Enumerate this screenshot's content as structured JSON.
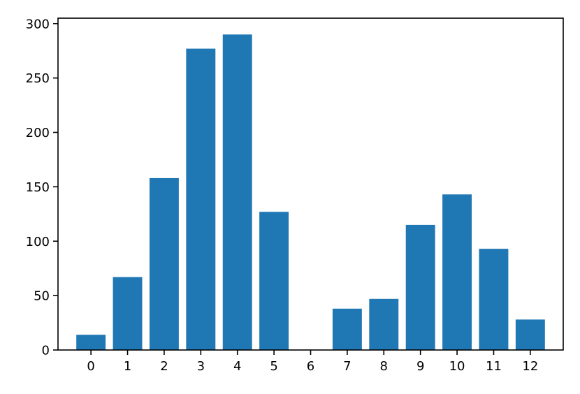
{
  "chart_data": {
    "type": "bar",
    "categories": [
      "0",
      "1",
      "2",
      "3",
      "4",
      "5",
      "6",
      "7",
      "8",
      "9",
      "10",
      "11",
      "12"
    ],
    "values": [
      14,
      67,
      158,
      277,
      290,
      127,
      0,
      38,
      47,
      115,
      143,
      93,
      28
    ],
    "title": "",
    "xlabel": "",
    "ylabel": "",
    "ylim": [
      0,
      305
    ],
    "yticks": [
      "0",
      "50",
      "100",
      "150",
      "200",
      "250",
      "300"
    ],
    "bar_color": "#1f77b4",
    "grid": false,
    "legend": "none"
  }
}
